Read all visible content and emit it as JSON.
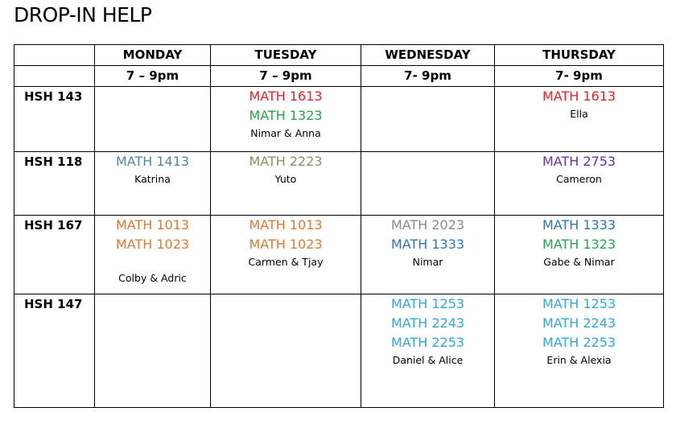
{
  "title": "DROP-IN HELP",
  "days": [
    {
      "name": "MONDAY",
      "time": "7 – 9pm"
    },
    {
      "name": "TUESDAY",
      "time": "7 – 9pm"
    },
    {
      "name": "WEDNESDAY",
      "time": "7- 9pm"
    },
    {
      "name": "THURSDAY",
      "time": "7- 9pm"
    }
  ],
  "rows": [
    {
      "room": "HSH 143",
      "cells": [
        {
          "courses": [],
          "tutors": ""
        },
        {
          "courses": [
            {
              "code": "MATH 1613",
              "color": "#e8202a"
            },
            {
              "code": "MATH 1323",
              "color": "#22a84a"
            }
          ],
          "tutors": "Nimar & Anna"
        },
        {
          "courses": [],
          "tutors": ""
        },
        {
          "courses": [
            {
              "code": "MATH 1613",
              "color": "#e8202a"
            }
          ],
          "tutors": "Ella"
        }
      ]
    },
    {
      "room": "HSH 118",
      "cells": [
        {
          "courses": [
            {
              "code": "MATH 1413",
              "color": "#4a8aa8"
            }
          ],
          "tutors": "Katrina"
        },
        {
          "courses": [
            {
              "code": "MATH 2223",
              "color": "#7f9a5a"
            }
          ],
          "tutors": "Yuto"
        },
        {
          "courses": [],
          "tutors": ""
        },
        {
          "courses": [
            {
              "code": "MATH 2753",
              "color": "#7030a0"
            }
          ],
          "tutors": "Cameron"
        }
      ]
    },
    {
      "room": "HSH 167",
      "cells": [
        {
          "courses": [
            {
              "code": "MATH 1013",
              "color": "#e07a30"
            },
            {
              "code": "MATH 1023",
              "color": "#e07a30"
            }
          ],
          "tutors": "Colby & Adric",
          "gap": true
        },
        {
          "courses": [
            {
              "code": "MATH 1013",
              "color": "#e07a30"
            },
            {
              "code": "MATH 1023",
              "color": "#e07a30"
            }
          ],
          "tutors": "Carmen & Tjay"
        },
        {
          "courses": [
            {
              "code": "MATH 2023",
              "color": "#8a8a8a"
            },
            {
              "code": "MATH 1333",
              "color": "#2e75b6"
            }
          ],
          "tutors": "Nimar"
        },
        {
          "courses": [
            {
              "code": "MATH 1333",
              "color": "#2e75b6"
            },
            {
              "code": "MATH 1323",
              "color": "#22a84a"
            }
          ],
          "tutors": "Gabe & Nimar"
        }
      ]
    },
    {
      "room": "HSH 147",
      "cells": [
        {
          "courses": [],
          "tutors": ""
        },
        {
          "courses": [],
          "tutors": ""
        },
        {
          "courses": [
            {
              "code": "MATH 1253",
              "color": "#2ea8e0"
            },
            {
              "code": "MATH 2243",
              "color": "#2ea8e0"
            },
            {
              "code": "MATH 2253",
              "color": "#2ea8e0"
            }
          ],
          "tutors": "Daniel & Alice"
        },
        {
          "courses": [
            {
              "code": "MATH 1253",
              "color": "#2ea8e0"
            },
            {
              "code": "MATH 2243",
              "color": "#2ea8e0"
            },
            {
              "code": "MATH 2253",
              "color": "#2ea8e0"
            }
          ],
          "tutors": "Erin & Alexia"
        }
      ]
    }
  ]
}
